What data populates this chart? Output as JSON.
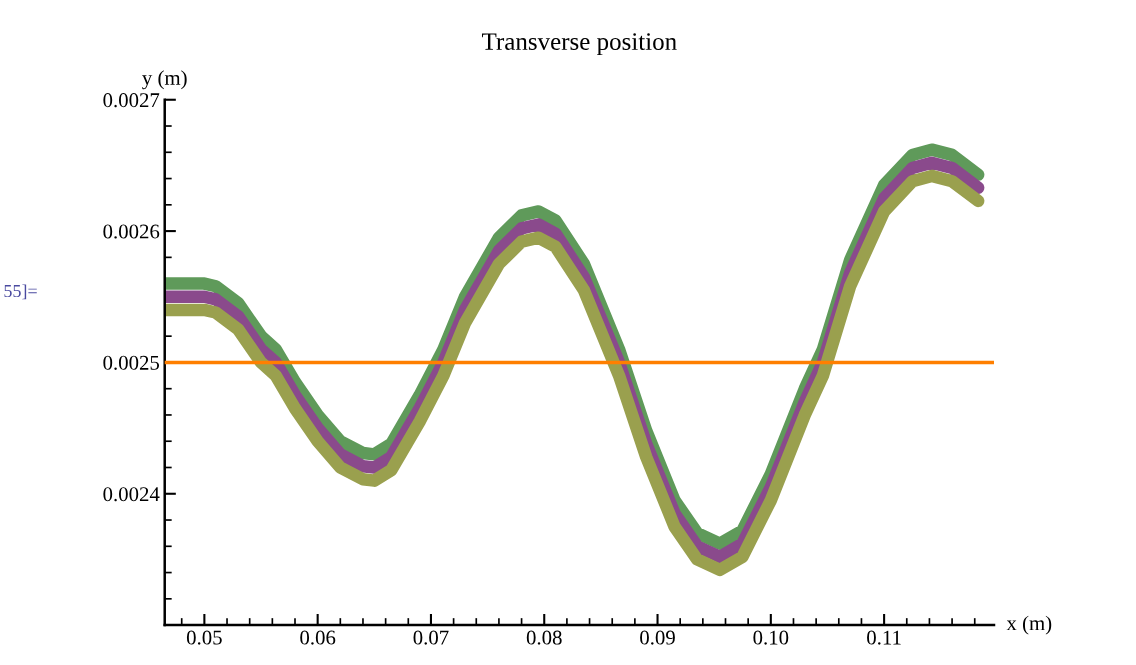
{
  "chart_data": {
    "type": "line",
    "title": "Transverse position",
    "xlabel": "x (m)",
    "ylabel": "y (m)",
    "annotations": [
      "55]="
    ],
    "x": [
      0.0465,
      0.048,
      0.05,
      0.051,
      0.053,
      0.055,
      0.0563,
      0.058,
      0.06,
      0.062,
      0.064,
      0.065,
      0.0665,
      0.069,
      0.0711,
      0.073,
      0.076,
      0.078,
      0.0795,
      0.081,
      0.0835,
      0.0866,
      0.089,
      0.0915,
      0.0935,
      0.0955,
      0.0975,
      0.1,
      0.103,
      0.1046,
      0.107,
      0.11,
      0.1125,
      0.1142,
      0.116,
      0.1183
    ],
    "series": [
      {
        "color": "#5f9a5a",
        "values": [
          0.00256,
          0.00256,
          0.00256,
          0.002558,
          0.002545,
          0.00252,
          0.00251,
          0.002485,
          0.00246,
          0.00244,
          0.002431,
          0.00243,
          0.002438,
          0.002475,
          0.00251,
          0.00255,
          0.002595,
          0.002612,
          0.002615,
          0.002608,
          0.002575,
          0.00251,
          0.002448,
          0.002395,
          0.00237,
          0.002362,
          0.002372,
          0.002415,
          0.00248,
          0.00251,
          0.002578,
          0.002635,
          0.002658,
          0.002662,
          0.002658,
          0.002643
        ]
      },
      {
        "color": "#8a4a8c",
        "values": [
          0.00255,
          0.00255,
          0.00255,
          0.002548,
          0.002535,
          0.00251,
          0.0025,
          0.002475,
          0.00245,
          0.00243,
          0.002421,
          0.00242,
          0.002428,
          0.002465,
          0.0025,
          0.00254,
          0.002585,
          0.002602,
          0.002605,
          0.002598,
          0.002565,
          0.0025,
          0.002438,
          0.002385,
          0.00236,
          0.002352,
          0.002362,
          0.002405,
          0.00247,
          0.0025,
          0.002568,
          0.002625,
          0.002648,
          0.002652,
          0.002648,
          0.002633
        ]
      },
      {
        "color": "#9aa04e",
        "values": [
          0.00254,
          0.00254,
          0.00254,
          0.002538,
          0.002525,
          0.0025,
          0.00249,
          0.002465,
          0.00244,
          0.00242,
          0.002411,
          0.00241,
          0.002418,
          0.002455,
          0.00249,
          0.00253,
          0.002575,
          0.002592,
          0.002595,
          0.002588,
          0.002555,
          0.00249,
          0.002428,
          0.002375,
          0.00235,
          0.002342,
          0.002352,
          0.002395,
          0.00246,
          0.00249,
          0.002558,
          0.002615,
          0.002638,
          0.002642,
          0.002638,
          0.002623
        ]
      }
    ],
    "ref_lines": [
      {
        "axis": "y",
        "value": 0.0025,
        "color": "#ff7f00"
      }
    ],
    "xlim": [
      0.0465,
      0.1197
    ],
    "ylim": [
      0.0023,
      0.0027
    ],
    "xticks": [
      0.05,
      0.06,
      0.07,
      0.08,
      0.09,
      {
        "value": 0.1,
        "label": "0.10"
      },
      0.11
    ],
    "yticks": [
      0.0024,
      0.0025,
      0.0026,
      0.0027
    ],
    "grid": false,
    "line_style": "solid"
  }
}
